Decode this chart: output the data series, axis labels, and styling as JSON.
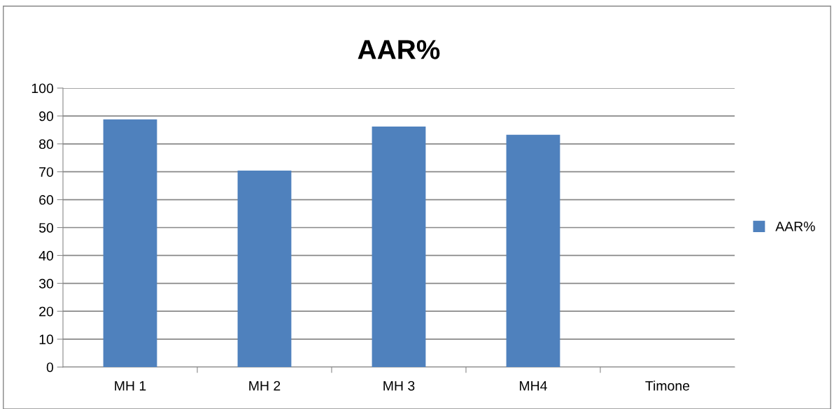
{
  "chart_data": {
    "type": "bar",
    "title": "AAR%",
    "categories": [
      "MH 1",
      "MH 2",
      "MH 3",
      "MH4",
      "Timone"
    ],
    "series": [
      {
        "name": "AAR%",
        "color": "#4f81bd",
        "values": [
          88.8,
          70.4,
          86.2,
          83.3,
          0
        ]
      }
    ],
    "ylim": [
      0,
      100
    ],
    "yticks": [
      0,
      10,
      20,
      30,
      40,
      50,
      60,
      70,
      80,
      90,
      100
    ],
    "grid": "y",
    "legend": "right"
  }
}
